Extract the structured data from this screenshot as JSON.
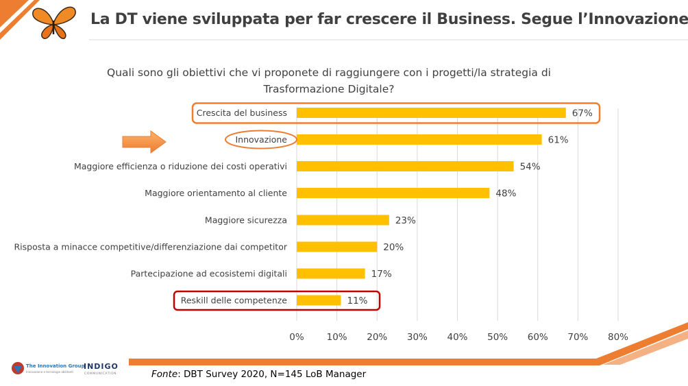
{
  "slide": {
    "title": "La DT viene sviluppata per far crescere il Business. Segue l’Innovazione",
    "question": "Quali sono gli obiettivi che vi proponete di raggiungere con i progetti/la strategia di Trasformazione Digitale?",
    "source_label": "Fonte",
    "source_text": ": DBT Survey 2020, N=145 LoB Manager",
    "logos": {
      "tig_name": "The Innovation Group",
      "tig_tagline": "Innovazione e tecnologie abilitanti",
      "indigo_name": "INDIGO",
      "indigo_sub": "COMMUNICATION"
    }
  },
  "colors": {
    "bar": "#FFC000",
    "accent_orange": "#ED7D31",
    "highlight_red": "#C00000",
    "gridline": "#D9D9D9",
    "text": "#404040"
  },
  "icons": [
    "butterfly-logo",
    "right-arrow",
    "tig-logo"
  ],
  "chart_data": {
    "type": "bar",
    "orientation": "horizontal",
    "categories": [
      "Crescita del business",
      "Innovazione",
      "Maggiore efficienza o riduzione dei costi operativi",
      "Maggiore orientamento al cliente",
      "Maggiore sicurezza",
      "Risposta a minacce competitive/differenziazione dai competitor",
      "Partecipazione ad ecosistemi digitali",
      "Reskill delle competenze"
    ],
    "values": [
      67,
      61,
      54,
      48,
      23,
      20,
      17,
      11
    ],
    "data_labels": [
      "67%",
      "61%",
      "54%",
      "48%",
      "23%",
      "20%",
      "17%",
      "11%"
    ],
    "xlim": [
      0,
      80
    ],
    "xticks": [
      "0%",
      "10%",
      "20%",
      "30%",
      "40%",
      "50%",
      "60%",
      "70%",
      "80%"
    ],
    "grid": true,
    "highlighted": {
      "orange_box": "Crescita del business",
      "orange_ellipse": "Innovazione",
      "red_box": "Reskill delle competenze"
    }
  }
}
